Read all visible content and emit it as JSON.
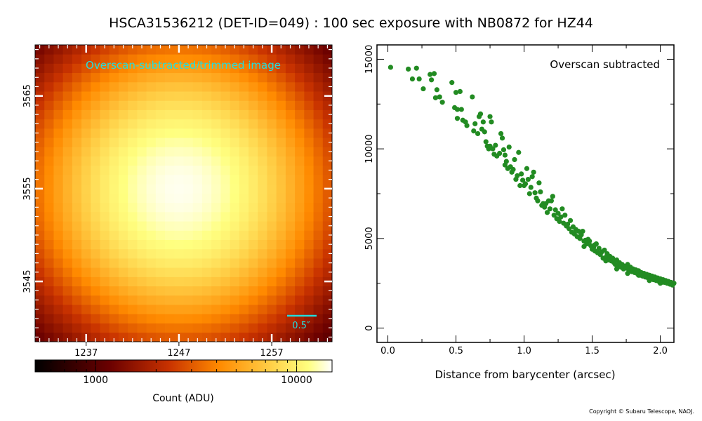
{
  "title": "HSCA31536212 (DET-ID=049) :  100 sec exposure with NB0872 for HZ44",
  "copyright": "Copyright © Subaru Telescope, NAOJ.",
  "colors": {
    "scatter_points": "#228b22",
    "overlay_text": "#22dddd",
    "scale_bar": "#22dddd"
  },
  "chart_data": [
    {
      "type": "heatmap",
      "title": "Overscan-subtracted/trimmed image",
      "x_range": [
        1231.5,
        1263.5
      ],
      "y_range": [
        3538.5,
        3570.5
      ],
      "x_ticks": [
        1237,
        1247,
        1257
      ],
      "y_ticks": [
        3545,
        3555,
        3565
      ],
      "x_tick_labels": [
        "1237",
        "1247",
        "1257"
      ],
      "y_tick_labels": [
        "3545",
        "3555",
        "3565"
      ],
      "peak_center": [
        1247,
        3555
      ],
      "peak_value": 14500,
      "background_value": 700,
      "profile_sigma_pixels": 8.5,
      "scale_bar_label": "0.5″",
      "scale_bar_arcsec": 0.5,
      "colorbar": {
        "label": "Count (ADU)",
        "scale": "log",
        "range": [
          500,
          15000
        ],
        "major_ticks": [
          1000,
          10000
        ],
        "major_tick_labels": [
          "1000",
          "10000"
        ],
        "colormap": "afmhot"
      }
    },
    {
      "type": "scatter",
      "annotation": "Overscan subtracted",
      "xlabel": "Distance from barycenter (arcsec)",
      "ylabel": "",
      "xlim": [
        -0.08,
        2.1
      ],
      "ylim": [
        -800,
        15800
      ],
      "x_ticks": [
        0.0,
        0.5,
        1.0,
        1.5,
        2.0
      ],
      "x_tick_labels": [
        "0.0",
        "0.5",
        "1.0",
        "1.5",
        "2.0"
      ],
      "y_ticks": [
        0,
        5000,
        10000,
        15000
      ],
      "y_tick_labels": [
        "0",
        "5000",
        "10000",
        "15000"
      ],
      "points": [
        [
          0.02,
          14550
        ],
        [
          0.15,
          14450
        ],
        [
          0.18,
          13900
        ],
        [
          0.21,
          14500
        ],
        [
          0.23,
          13900
        ],
        [
          0.26,
          13350
        ],
        [
          0.31,
          14150
        ],
        [
          0.32,
          13850
        ],
        [
          0.34,
          14200
        ],
        [
          0.35,
          12850
        ],
        [
          0.36,
          13300
        ],
        [
          0.38,
          12900
        ],
        [
          0.4,
          12600
        ],
        [
          0.47,
          13700
        ],
        [
          0.49,
          12300
        ],
        [
          0.5,
          13150
        ],
        [
          0.51,
          12200
        ],
        [
          0.51,
          11700
        ],
        [
          0.53,
          13200
        ],
        [
          0.54,
          12200
        ],
        [
          0.55,
          11600
        ],
        [
          0.57,
          11500
        ],
        [
          0.58,
          11300
        ],
        [
          0.62,
          12900
        ],
        [
          0.63,
          11000
        ],
        [
          0.64,
          11400
        ],
        [
          0.66,
          10850
        ],
        [
          0.67,
          11800
        ],
        [
          0.68,
          11950
        ],
        [
          0.69,
          11100
        ],
        [
          0.7,
          11500
        ],
        [
          0.71,
          10950
        ],
        [
          0.72,
          10400
        ],
        [
          0.73,
          10150
        ],
        [
          0.74,
          10000
        ],
        [
          0.75,
          11800
        ],
        [
          0.75,
          10150
        ],
        [
          0.76,
          11500
        ],
        [
          0.77,
          10000
        ],
        [
          0.78,
          9700
        ],
        [
          0.79,
          10200
        ],
        [
          0.8,
          9600
        ],
        [
          0.82,
          9750
        ],
        [
          0.83,
          10850
        ],
        [
          0.84,
          10600
        ],
        [
          0.85,
          9950
        ],
        [
          0.86,
          9650
        ],
        [
          0.86,
          9100
        ],
        [
          0.87,
          9300
        ],
        [
          0.88,
          8900
        ],
        [
          0.89,
          10100
        ],
        [
          0.9,
          9000
        ],
        [
          0.91,
          8700
        ],
        [
          0.92,
          8850
        ],
        [
          0.93,
          9400
        ],
        [
          0.94,
          8300
        ],
        [
          0.95,
          8500
        ],
        [
          0.96,
          9800
        ],
        [
          0.97,
          7950
        ],
        [
          0.98,
          8600
        ],
        [
          0.99,
          8250
        ],
        [
          1.0,
          7950
        ],
        [
          1.01,
          8050
        ],
        [
          1.02,
          8900
        ],
        [
          1.03,
          8300
        ],
        [
          1.04,
          7500
        ],
        [
          1.05,
          7850
        ],
        [
          1.06,
          8450
        ],
        [
          1.07,
          8700
        ],
        [
          1.08,
          7550
        ],
        [
          1.09,
          7250
        ],
        [
          1.1,
          7100
        ],
        [
          1.11,
          8100
        ],
        [
          1.12,
          7600
        ],
        [
          1.13,
          6850
        ],
        [
          1.14,
          6950
        ],
        [
          1.15,
          6750
        ],
        [
          1.16,
          6950
        ],
        [
          1.17,
          6450
        ],
        [
          1.18,
          7100
        ],
        [
          1.19,
          6650
        ],
        [
          1.2,
          7100
        ],
        [
          1.21,
          7350
        ],
        [
          1.22,
          6300
        ],
        [
          1.23,
          6600
        ],
        [
          1.24,
          6100
        ],
        [
          1.25,
          6400
        ],
        [
          1.26,
          5950
        ],
        [
          1.27,
          6200
        ],
        [
          1.28,
          6650
        ],
        [
          1.29,
          5850
        ],
        [
          1.3,
          6300
        ],
        [
          1.31,
          5700
        ],
        [
          1.32,
          5800
        ],
        [
          1.33,
          5550
        ],
        [
          1.34,
          6000
        ],
        [
          1.35,
          5350
        ],
        [
          1.36,
          5650
        ],
        [
          1.37,
          5250
        ],
        [
          1.38,
          5500
        ],
        [
          1.39,
          5100
        ],
        [
          1.4,
          5400
        ],
        [
          1.41,
          5000
        ],
        [
          1.42,
          5200
        ],
        [
          1.43,
          5400
        ],
        [
          1.44,
          4850
        ],
        [
          1.45,
          4900
        ],
        [
          1.46,
          4700
        ],
        [
          1.47,
          4950
        ],
        [
          1.48,
          4850
        ],
        [
          1.49,
          4600
        ],
        [
          1.5,
          4400
        ],
        [
          1.51,
          4500
        ],
        [
          1.52,
          4300
        ],
        [
          1.53,
          4700
        ],
        [
          1.54,
          4200
        ],
        [
          1.55,
          4450
        ],
        [
          1.56,
          4100
        ],
        [
          1.57,
          4250
        ],
        [
          1.58,
          3900
        ],
        [
          1.59,
          4350
        ],
        [
          1.6,
          3950
        ],
        [
          1.61,
          4150
        ],
        [
          1.62,
          3800
        ],
        [
          1.63,
          4000
        ],
        [
          1.64,
          3750
        ],
        [
          1.65,
          3900
        ],
        [
          1.66,
          3650
        ],
        [
          1.67,
          3550
        ],
        [
          1.68,
          3800
        ],
        [
          1.69,
          3450
        ],
        [
          1.7,
          3650
        ],
        [
          1.71,
          3400
        ],
        [
          1.72,
          3550
        ],
        [
          1.73,
          3300
        ],
        [
          1.74,
          3450
        ],
        [
          1.75,
          3350
        ],
        [
          1.76,
          3550
        ],
        [
          1.77,
          3200
        ],
        [
          1.78,
          3400
        ],
        [
          1.79,
          3150
        ],
        [
          1.8,
          3300
        ],
        [
          1.81,
          3100
        ],
        [
          1.82,
          3250
        ],
        [
          1.83,
          3050
        ],
        [
          1.84,
          3200
        ],
        [
          1.85,
          2950
        ],
        [
          1.86,
          3100
        ],
        [
          1.87,
          2900
        ],
        [
          1.88,
          3050
        ],
        [
          1.89,
          2850
        ],
        [
          1.9,
          3000
        ],
        [
          1.91,
          2800
        ],
        [
          1.92,
          2950
        ],
        [
          1.93,
          2750
        ],
        [
          1.94,
          2900
        ],
        [
          1.95,
          2700
        ],
        [
          1.96,
          2850
        ],
        [
          1.97,
          2650
        ],
        [
          1.98,
          2800
        ],
        [
          1.99,
          2600
        ],
        [
          2.0,
          2750
        ],
        [
          2.01,
          2550
        ],
        [
          2.02,
          2700
        ],
        [
          2.03,
          2550
        ],
        [
          2.04,
          2650
        ],
        [
          2.05,
          2500
        ],
        [
          2.06,
          2600
        ],
        [
          2.07,
          2450
        ],
        [
          2.08,
          2550
        ],
        [
          2.09,
          2400
        ],
        [
          2.1,
          2500
        ],
        [
          1.44,
          4550
        ],
        [
          1.52,
          4650
        ],
        [
          1.6,
          3750
        ],
        [
          1.68,
          3300
        ],
        [
          1.76,
          3050
        ],
        [
          1.84,
          2950
        ],
        [
          1.92,
          2650
        ],
        [
          2.0,
          2500
        ]
      ]
    }
  ]
}
